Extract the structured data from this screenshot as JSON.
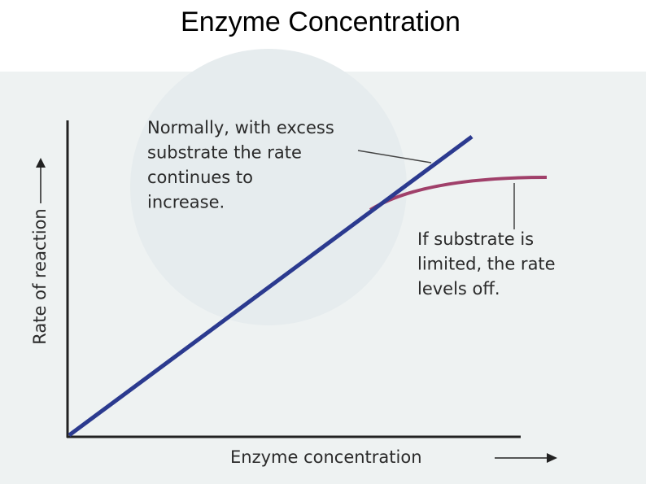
{
  "title": "Enzyme Concentration",
  "diagram": {
    "y_axis_label": "Rate of reaction",
    "x_axis_label": "Enzyme concentration",
    "annotations": [
      {
        "lines": [
          "Normally, with excess",
          "substrate the rate",
          "continues to",
          "increase."
        ]
      },
      {
        "lines": [
          "If substrate is",
          "limited, the rate",
          "levels off."
        ]
      }
    ]
  }
}
